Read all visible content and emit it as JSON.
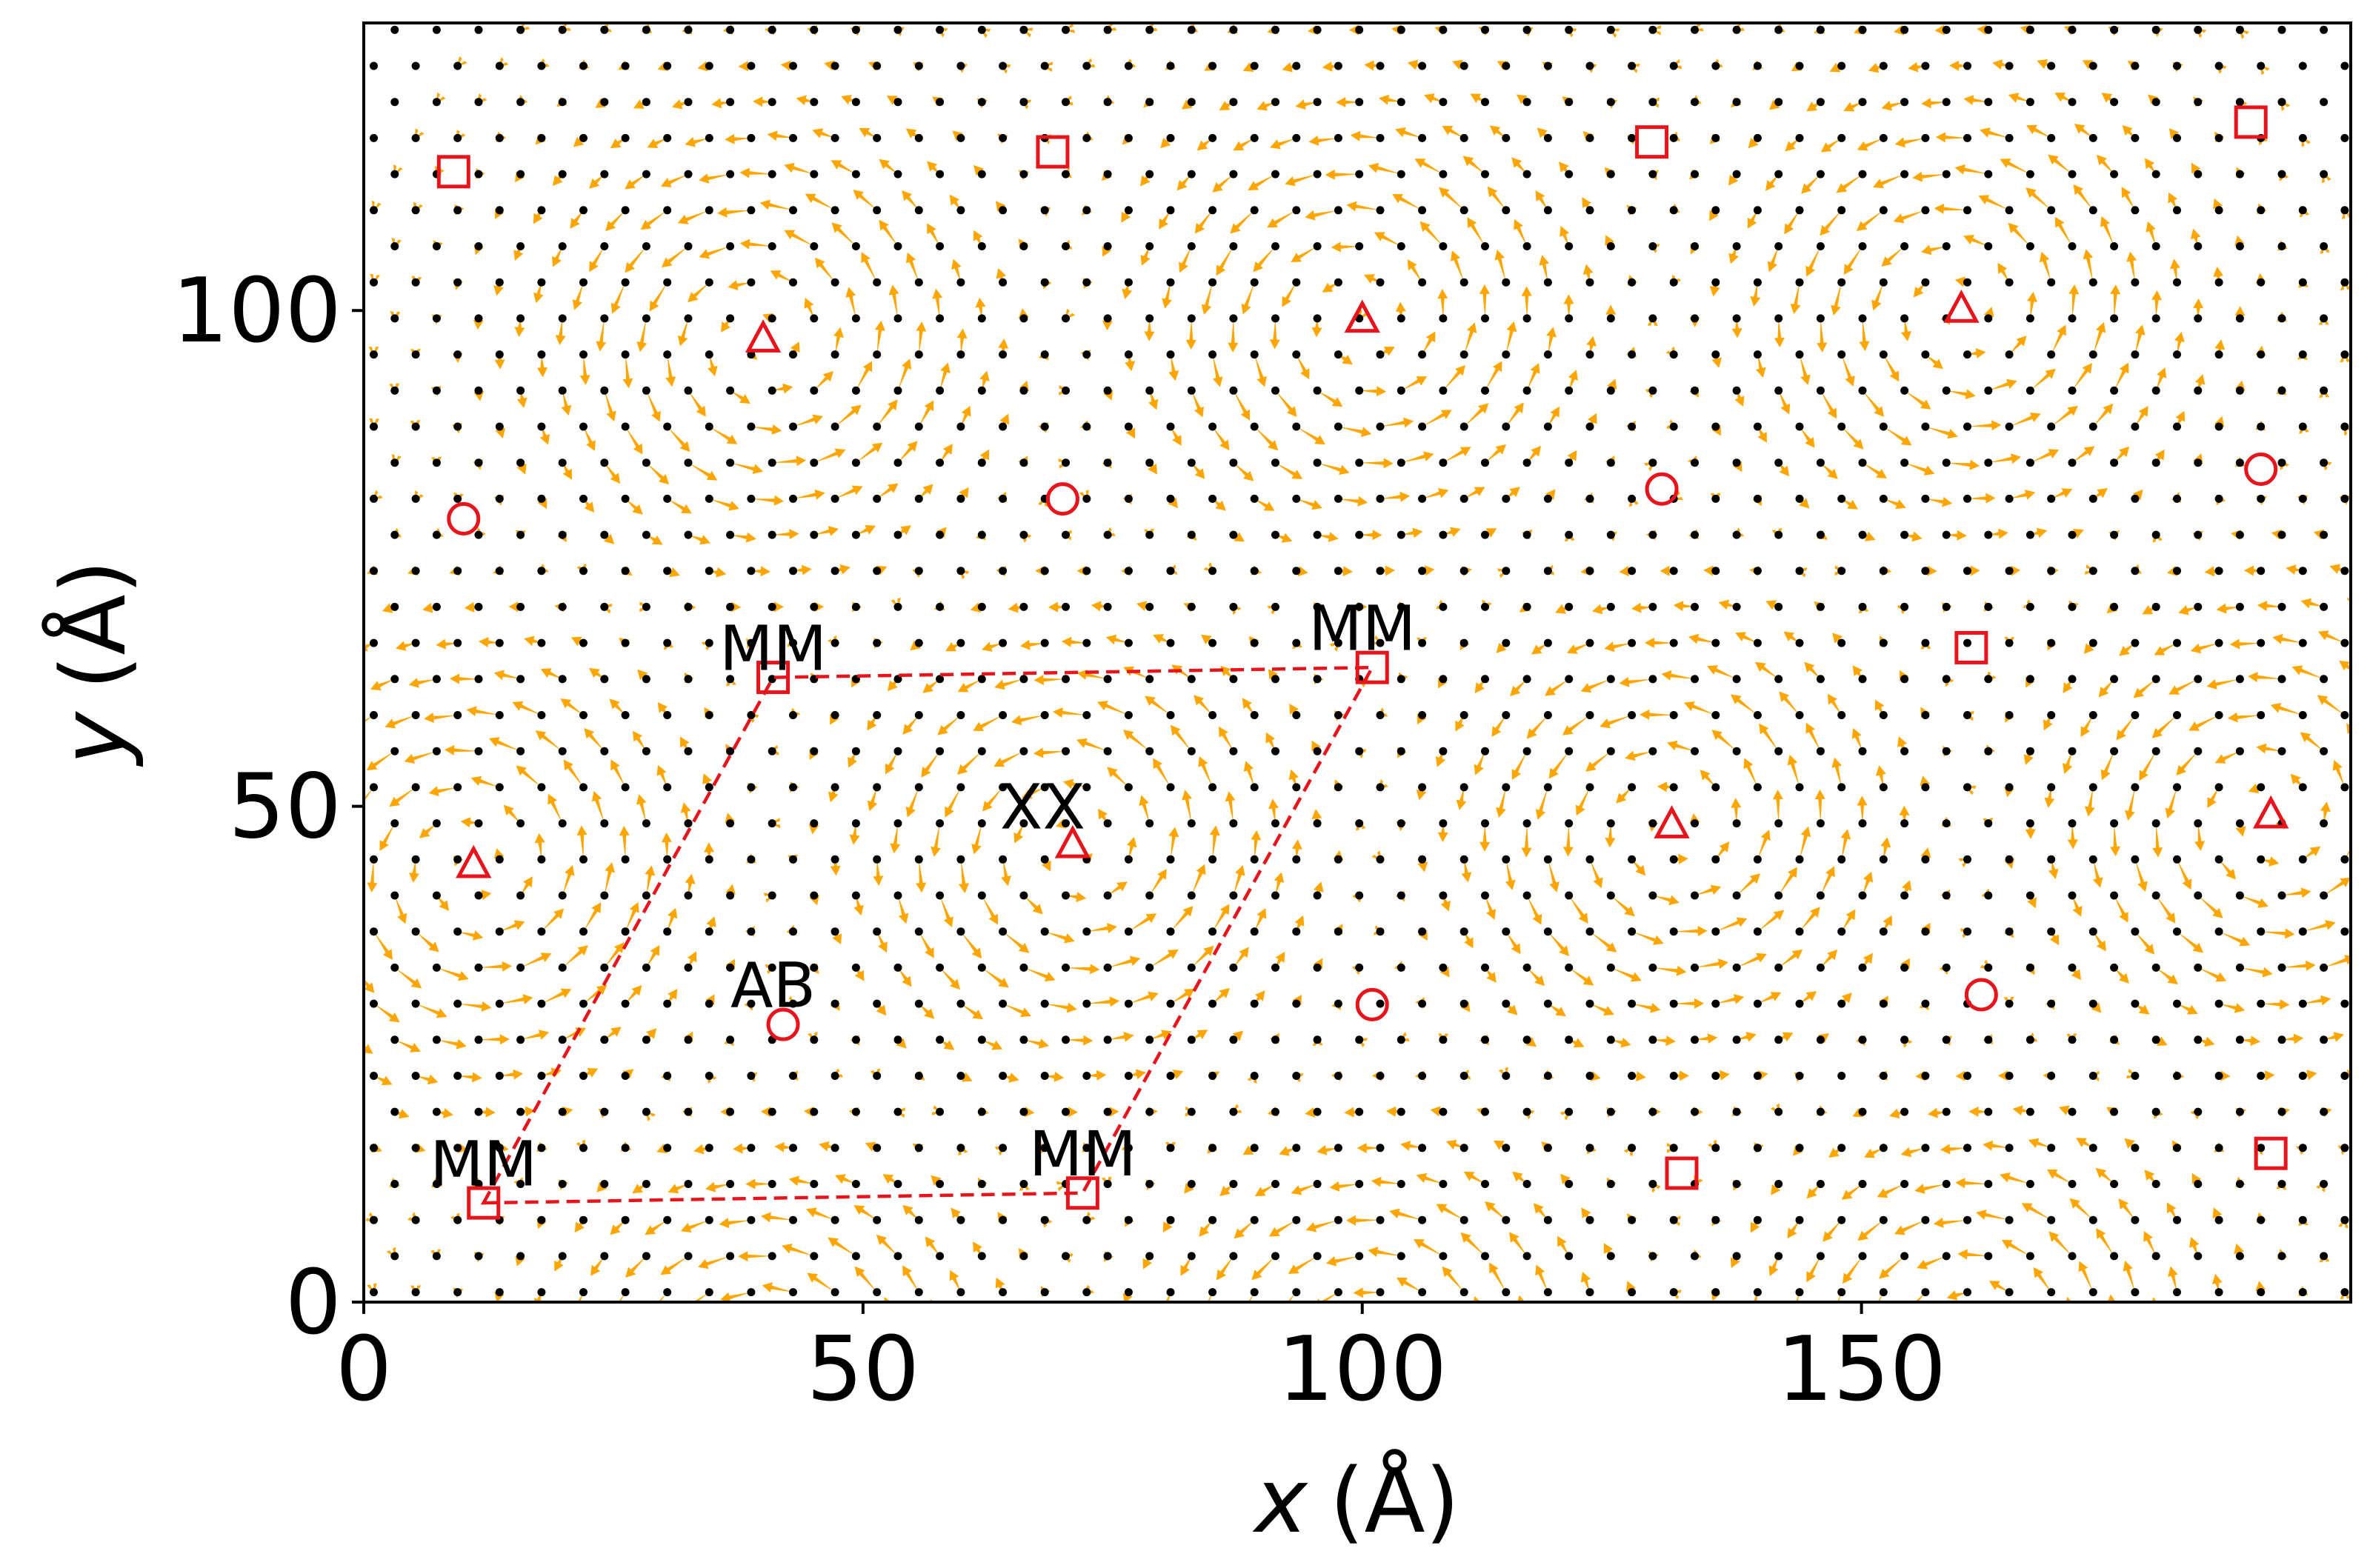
{
  "chart_data": {
    "type": "scatter",
    "title": "",
    "xlabel": {
      "var": "x",
      "unit": "(Å)"
    },
    "ylabel": {
      "var": "y",
      "unit": "(Å)"
    },
    "xlim": [
      0,
      199
    ],
    "ylim": [
      0,
      129
    ],
    "x_ticks": [
      0,
      50,
      100,
      150
    ],
    "y_ticks": [
      0,
      50,
      100
    ],
    "grid": false,
    "legend": "none",
    "colors": {
      "arrows": "#ffa500",
      "atoms": "#000000",
      "markers": "#e8141b",
      "cell": "#e8141b"
    },
    "vortices": [
      {
        "x": 40,
        "y": 97,
        "sense": "ccw"
      },
      {
        "x": 100,
        "y": 99,
        "sense": "ccw"
      },
      {
        "x": 160,
        "y": 100,
        "sense": "ccw"
      },
      {
        "x": 11,
        "y": 44,
        "sense": "ccw"
      },
      {
        "x": 71,
        "y": 46,
        "sense": "ccw"
      },
      {
        "x": 131,
        "y": 48,
        "sense": "ccw"
      },
      {
        "x": 191,
        "y": 49,
        "sense": "ccw"
      },
      {
        "x": 41,
        "y": -8,
        "sense": "ccw"
      },
      {
        "x": 102,
        "y": -6,
        "sense": "ccw"
      },
      {
        "x": 162,
        "y": -4,
        "sense": "ccw"
      }
    ],
    "markers": {
      "MM (square)": [
        [
          9,
          114
        ],
        [
          69,
          116
        ],
        [
          129,
          117
        ],
        [
          189,
          119
        ],
        [
          41,
          63
        ],
        [
          101,
          64
        ],
        [
          161,
          66
        ],
        [
          12,
          10
        ],
        [
          72,
          11
        ],
        [
          132,
          13
        ],
        [
          191,
          15
        ]
      ],
      "XX (triangle)": [
        [
          40,
          97
        ],
        [
          100,
          99
        ],
        [
          160,
          100
        ],
        [
          11,
          44
        ],
        [
          71,
          46
        ],
        [
          131,
          48
        ],
        [
          191,
          49
        ]
      ],
      "AB (circle)": [
        [
          10,
          79
        ],
        [
          70,
          81
        ],
        [
          130,
          82
        ],
        [
          190,
          84
        ],
        [
          42,
          28
        ],
        [
          101,
          30
        ],
        [
          162,
          31
        ]
      ]
    },
    "unit_cell": [
      [
        12,
        10
      ],
      [
        72,
        11
      ],
      [
        101,
        64
      ],
      [
        41,
        63
      ]
    ],
    "annotations": [
      {
        "text": "MM",
        "x": 41,
        "y": 66
      },
      {
        "text": "MM",
        "x": 100,
        "y": 68
      },
      {
        "text": "XX",
        "x": 68,
        "y": 50
      },
      {
        "text": "AB",
        "x": 41,
        "y": 32
      },
      {
        "text": "MM",
        "x": 12,
        "y": 14
      },
      {
        "text": "MM",
        "x": 72,
        "y": 15
      }
    ]
  }
}
